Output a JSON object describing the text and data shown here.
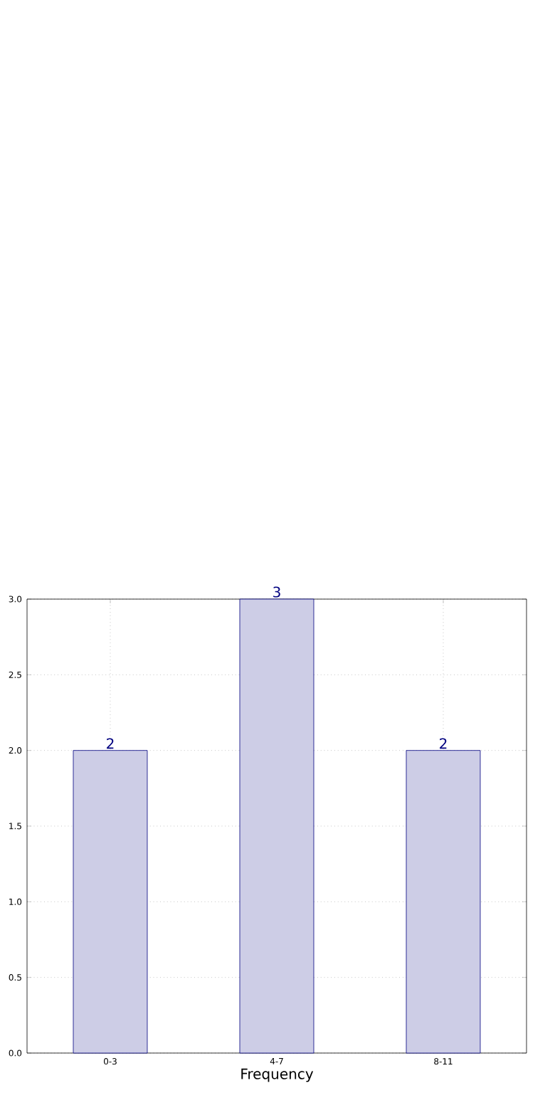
{
  "chart_data": {
    "type": "bar",
    "xlabel": "Frequency",
    "categories": [
      "0-3",
      "4-7",
      "8-11"
    ],
    "values": [
      2,
      3,
      2
    ],
    "color": "#cdcde6",
    "ylim": [
      0,
      3
    ],
    "yticks": [
      {
        "value": 0,
        "label": "0.0"
      },
      {
        "value": 0.5,
        "label": "0.5"
      },
      {
        "value": 1,
        "label": "1.0"
      },
      {
        "value": 1.5,
        "label": "1.5"
      },
      {
        "value": 2,
        "label": "2.0"
      },
      {
        "value": 2.5,
        "label": "2.5"
      },
      {
        "value": 3,
        "label": "3.0"
      }
    ],
    "grid": true,
    "data_labels": true
  }
}
